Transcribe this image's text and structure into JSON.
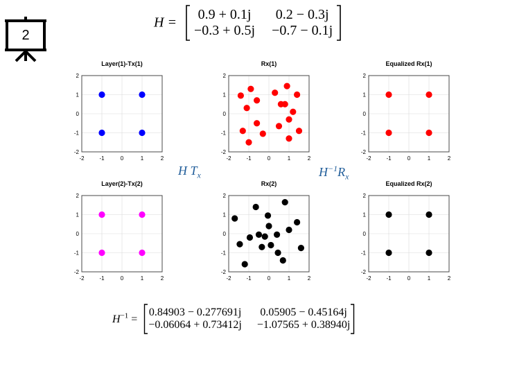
{
  "slide_number": "2",
  "h_matrix": {
    "label": "H =",
    "rows": [
      [
        "0.9 + 0.1j",
        "0.2 − 0.3j"
      ],
      [
        "−0.3 + 0.5j",
        "−0.7 − 0.1j"
      ]
    ]
  },
  "h_inv_matrix": {
    "label": "H",
    "sup": "−1",
    "eq": " =",
    "rows": [
      [
        "0.84903 − 0.277691j",
        "0.05905 − 0.45164j"
      ],
      [
        "−0.06064 + 0.73412j",
        "−1.07565 + 0.38940j"
      ]
    ]
  },
  "middle_labels": {
    "left": {
      "main": "H T",
      "sub": "x"
    },
    "right": {
      "main": "H",
      "sup": "−1",
      "main2": "R",
      "sub": "x"
    }
  },
  "colors": {
    "blue": "#0000ff",
    "red": "#ff0000",
    "magenta": "#ff00ff",
    "black": "#000000",
    "label": "#1f5c99"
  },
  "chart_data": [
    {
      "title": "Layer(1)-Tx(1)",
      "type": "scatter",
      "color": "#0000ff",
      "xlim": [
        -2,
        2
      ],
      "ylim": [
        -2,
        2
      ],
      "xticks": [
        "-2",
        "-1",
        "0",
        "1",
        "2"
      ],
      "yticks": [
        "2",
        "1",
        "0",
        "-1",
        "-2"
      ],
      "grid": true,
      "points": [
        [
          -1,
          1
        ],
        [
          1,
          1
        ],
        [
          -1,
          -1
        ],
        [
          1,
          -1
        ]
      ]
    },
    {
      "title": "Rx(1)",
      "type": "scatter",
      "color": "#ff0000",
      "xlim": [
        -2,
        2
      ],
      "ylim": [
        -2,
        2
      ],
      "xticks": [
        "-2",
        "-1",
        "0",
        "1",
        "2"
      ],
      "yticks": [
        "2",
        "1",
        "0",
        "-1",
        "-2"
      ],
      "grid": true,
      "points": [
        [
          -1.4,
          0.95
        ],
        [
          -0.9,
          1.3
        ],
        [
          -1.1,
          0.3
        ],
        [
          -0.6,
          0.7
        ],
        [
          0.3,
          1.1
        ],
        [
          0.9,
          1.45
        ],
        [
          1.4,
          1.0
        ],
        [
          0.6,
          0.5
        ],
        [
          0.8,
          0.5
        ],
        [
          1.2,
          0.1
        ],
        [
          -0.6,
          -0.5
        ],
        [
          -1.3,
          -0.9
        ],
        [
          -1.0,
          -1.5
        ],
        [
          -0.3,
          -1.05
        ],
        [
          0.5,
          -0.65
        ],
        [
          1.0,
          -0.3
        ],
        [
          1.5,
          -0.9
        ],
        [
          1.0,
          -1.3
        ]
      ]
    },
    {
      "title": "Equalized Rx(1)",
      "type": "scatter",
      "color": "#ff0000",
      "xlim": [
        -2,
        2
      ],
      "ylim": [
        -2,
        2
      ],
      "xticks": [
        "-2",
        "-1",
        "0",
        "1",
        "2"
      ],
      "yticks": [
        "2",
        "1",
        "0",
        "-1",
        "-2"
      ],
      "grid": true,
      "points": [
        [
          -1,
          1
        ],
        [
          1,
          1
        ],
        [
          -1,
          -1
        ],
        [
          1,
          -1
        ]
      ]
    },
    {
      "title": "Layer(2)-Tx(2)",
      "type": "scatter",
      "color": "#ff00ff",
      "xlim": [
        -2,
        2
      ],
      "ylim": [
        -2,
        2
      ],
      "xticks": [
        "-2",
        "-1",
        "0",
        "1",
        "2"
      ],
      "yticks": [
        "2",
        "1",
        "0",
        "-1",
        "-2"
      ],
      "grid": true,
      "points": [
        [
          -1,
          1
        ],
        [
          1,
          1
        ],
        [
          -1,
          -1
        ],
        [
          1,
          -1
        ]
      ]
    },
    {
      "title": "Rx(2)",
      "type": "scatter",
      "color": "#000000",
      "xlim": [
        -2,
        2
      ],
      "ylim": [
        -2,
        2
      ],
      "xticks": [
        "-2",
        "-1",
        "0",
        "1",
        "2"
      ],
      "yticks": [
        "2",
        "1",
        "0",
        "-1",
        "-2"
      ],
      "grid": true,
      "points": [
        [
          -1.7,
          0.8
        ],
        [
          -0.65,
          1.4
        ],
        [
          0.8,
          1.65
        ],
        [
          -0.05,
          0.95
        ],
        [
          1.4,
          0.6
        ],
        [
          0.0,
          0.4
        ],
        [
          1.0,
          0.2
        ],
        [
          -0.5,
          -0.05
        ],
        [
          -1.45,
          -0.55
        ],
        [
          -0.95,
          -0.2
        ],
        [
          0.4,
          -0.05
        ],
        [
          -0.2,
          -0.15
        ],
        [
          0.45,
          -1.0
        ],
        [
          0.1,
          -0.6
        ],
        [
          1.6,
          -0.75
        ],
        [
          -1.2,
          -1.6
        ],
        [
          0.7,
          -1.4
        ],
        [
          -0.35,
          -0.7
        ]
      ]
    },
    {
      "title": "Equalized Rx(2)",
      "type": "scatter",
      "color": "#000000",
      "xlim": [
        -2,
        2
      ],
      "ylim": [
        -2,
        2
      ],
      "xticks": [
        "-2",
        "-1",
        "0",
        "1",
        "2"
      ],
      "yticks": [
        "2",
        "1",
        "0",
        "-1",
        "-2"
      ],
      "grid": true,
      "points": [
        [
          -1,
          1
        ],
        [
          1,
          1
        ],
        [
          -1,
          -1
        ],
        [
          1,
          -1
        ]
      ]
    }
  ]
}
